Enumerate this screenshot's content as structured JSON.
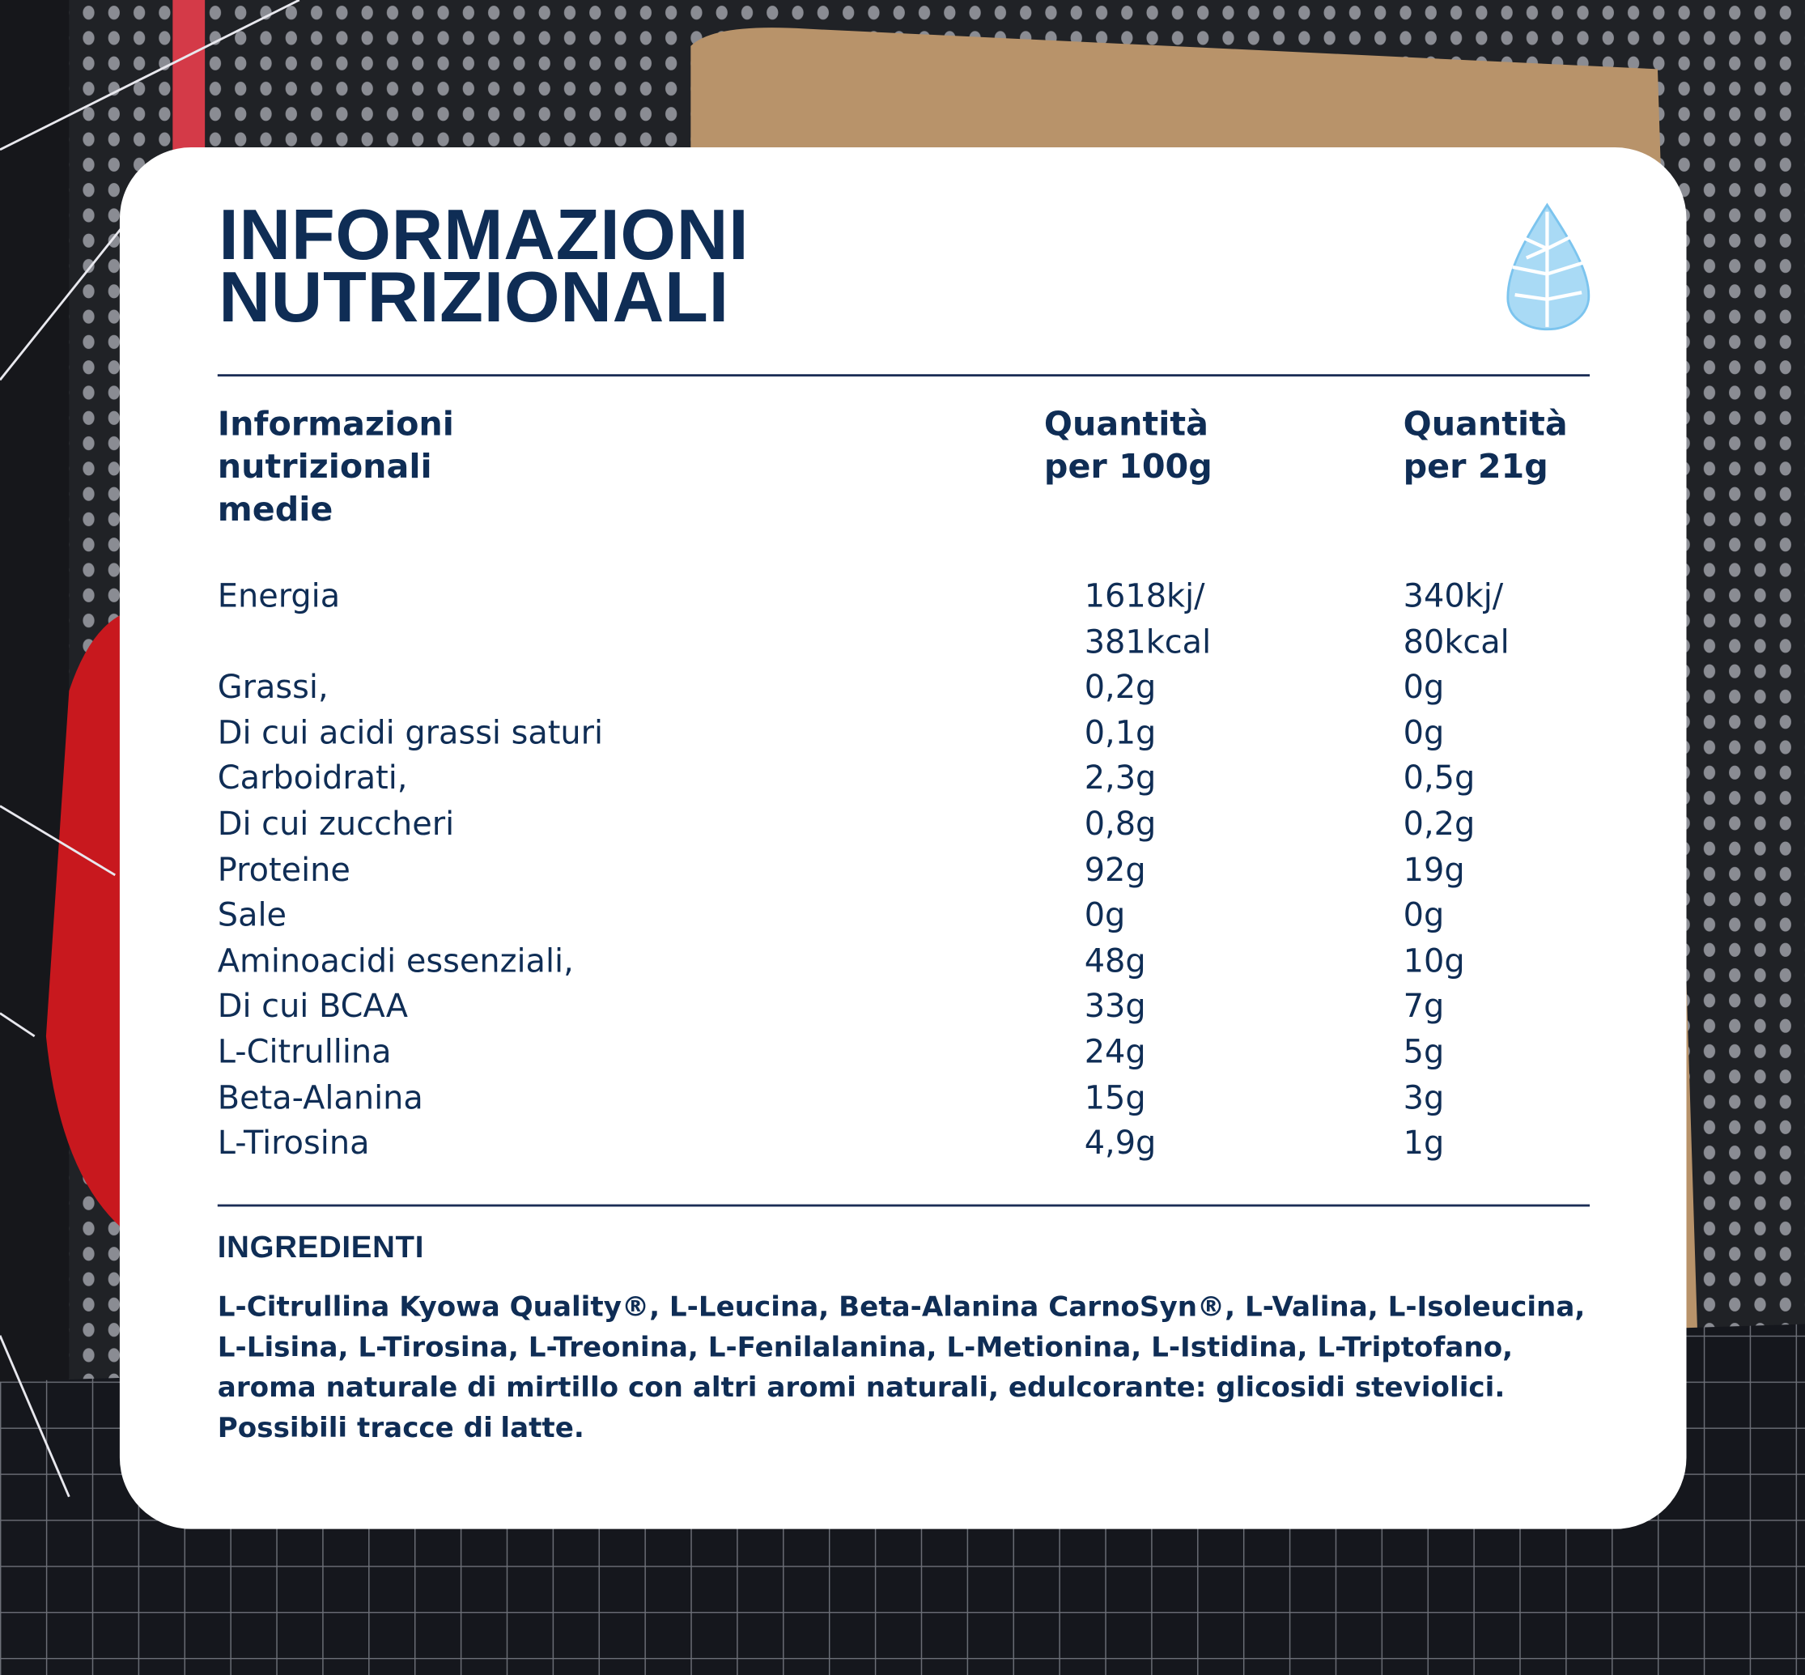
{
  "header": {
    "title": [
      "INFORMAZIONI",
      "NUTRIZIONALI"
    ]
  },
  "table": {
    "headers": [
      "Informazioni nutrizionali medie",
      "Quantità per 100g",
      "Quantità per 21g"
    ],
    "rows": [
      [
        "Energia",
        "1618kj/ 381kcal",
        "340kj/ 80kcal"
      ],
      [
        "Grassi,",
        "0,2g",
        "0g"
      ],
      [
        "Di cui acidi grassi saturi",
        "0,1g",
        "0g"
      ],
      [
        "Carboidrati,",
        "2,3g",
        "0,5g"
      ],
      [
        "Di cui zuccheri",
        "0,8g",
        "0,2g"
      ],
      [
        "Proteine",
        "92g",
        "19g"
      ],
      [
        "Sale",
        "0g",
        "0g"
      ],
      [
        "Aminoacidi essenziali,",
        "48g",
        "10g"
      ],
      [
        "Di cui BCAA",
        "33g",
        "7g"
      ],
      [
        "L-Citrullina",
        "24g",
        "5g"
      ],
      [
        "Beta-Alanina",
        "15g",
        "3g"
      ],
      [
        "L-Tirosina",
        "4,9g",
        "1g"
      ]
    ]
  },
  "ingredients": {
    "title": "INGREDIENTI",
    "parts": [
      "L-Citrullina Kyowa Quality®, L-Leucina, Beta-Alanina CarnoSyn®, L-Valina, L-Isoleucina, L-Lisina, L-Tirosina, L-Treonina, L-Fenilalanina, L-Metionina, L-Istidina, L-Triptofano, aroma naturale di mirtillo con altri aromi naturali, edulcorante: glicosidi steviolici. Possibili tracce di",
      "latte",
      "."
    ]
  }
}
